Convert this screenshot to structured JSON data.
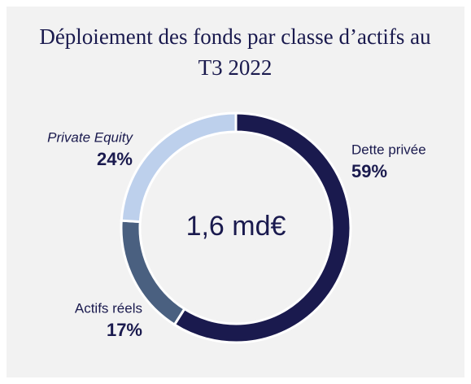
{
  "chart_data": {
    "type": "donut",
    "title": "Déploiement des fonds par classe d’actifs au T3 2022",
    "center_label": "1,6 md€",
    "categories": [
      "Dette privée",
      "Actifs réels",
      "Private Equity"
    ],
    "values": [
      59,
      17,
      24
    ],
    "value_labels": [
      "59%",
      "17%",
      "24%"
    ],
    "colors": [
      "#1a1a4e",
      "#4a6080",
      "#bdd0ec"
    ]
  }
}
